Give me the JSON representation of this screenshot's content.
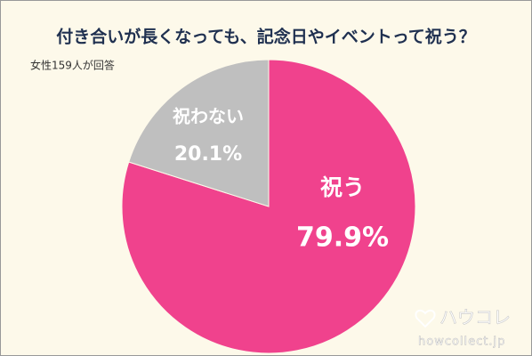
{
  "chart_data": {
    "type": "pie",
    "title": "付き合いが長くなっても、記念日やイベントって祝う？",
    "subtitle": "女性159人が回答",
    "categories": [
      "祝う",
      "祝わない"
    ],
    "values": [
      79.9,
      20.1
    ],
    "value_labels": [
      "79.9%",
      "20.1%"
    ],
    "colors": [
      "#f0428d",
      "#bfbfbf"
    ],
    "brand": "ハウコレ",
    "brand_url": "howcollect.jp"
  }
}
